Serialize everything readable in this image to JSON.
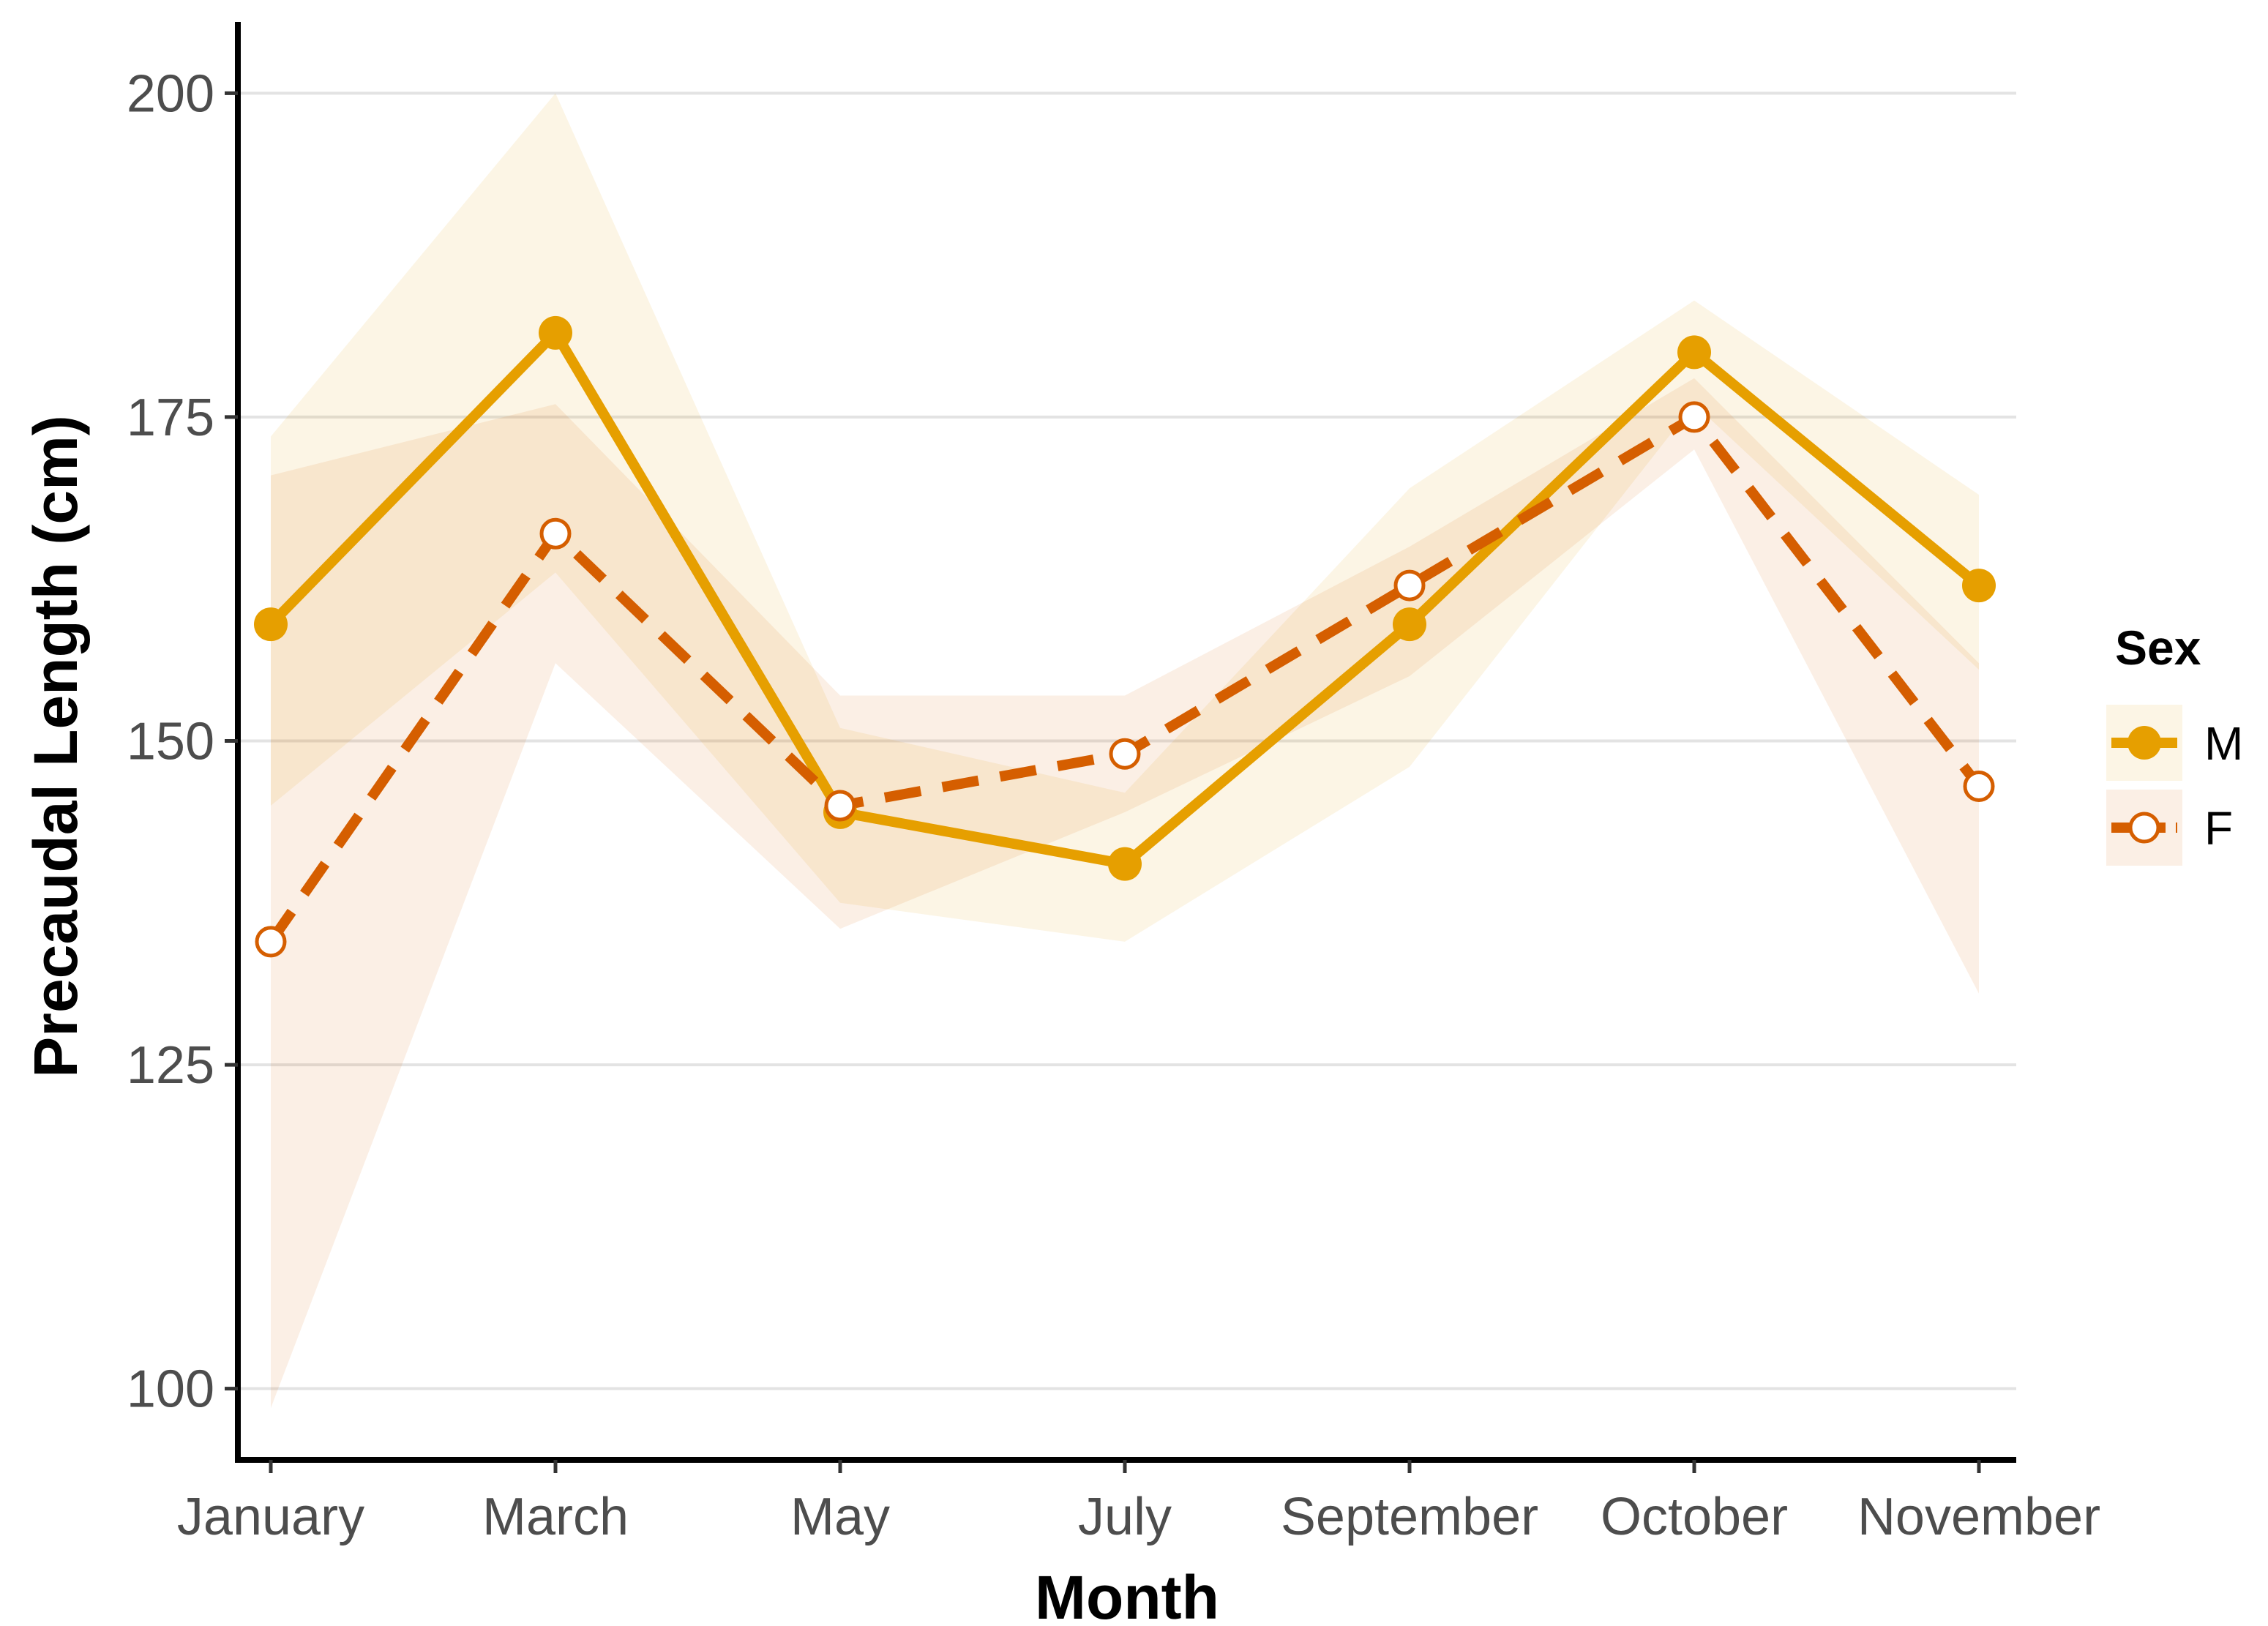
{
  "chart_data": {
    "type": "line",
    "xlabel": "Month",
    "ylabel": "Precaudal Length (cm)",
    "categories": [
      "January",
      "March",
      "May",
      "July",
      "September",
      "October",
      "November"
    ],
    "yticks": [
      100,
      125,
      150,
      175,
      200
    ],
    "ylim": [
      94.5,
      205.5
    ],
    "grid": "horizontal major",
    "legend": {
      "title": "Sex",
      "position": "right"
    },
    "series": [
      {
        "name": "M",
        "color": "#E69F00",
        "line_style": "solid",
        "marker": "filled-circle",
        "values": [
          159,
          181.5,
          144.5,
          140.5,
          159,
          180,
          162
        ],
        "band_lower": [
          145,
          163,
          137.5,
          134.5,
          148,
          176,
          155.5
        ],
        "band_upper": [
          173.5,
          200,
          151,
          146,
          169.5,
          184,
          169
        ]
      },
      {
        "name": "F",
        "color": "#D55E00",
        "line_style": "dashed",
        "marker": "open-circle",
        "values": [
          134.5,
          166,
          145,
          149,
          162,
          175,
          146.5
        ],
        "band_lower": [
          98.5,
          156,
          135.5,
          144.5,
          155,
          172.5,
          130.5
        ],
        "band_upper": [
          170.5,
          176,
          153.5,
          153.5,
          165,
          178,
          156
        ]
      }
    ]
  }
}
